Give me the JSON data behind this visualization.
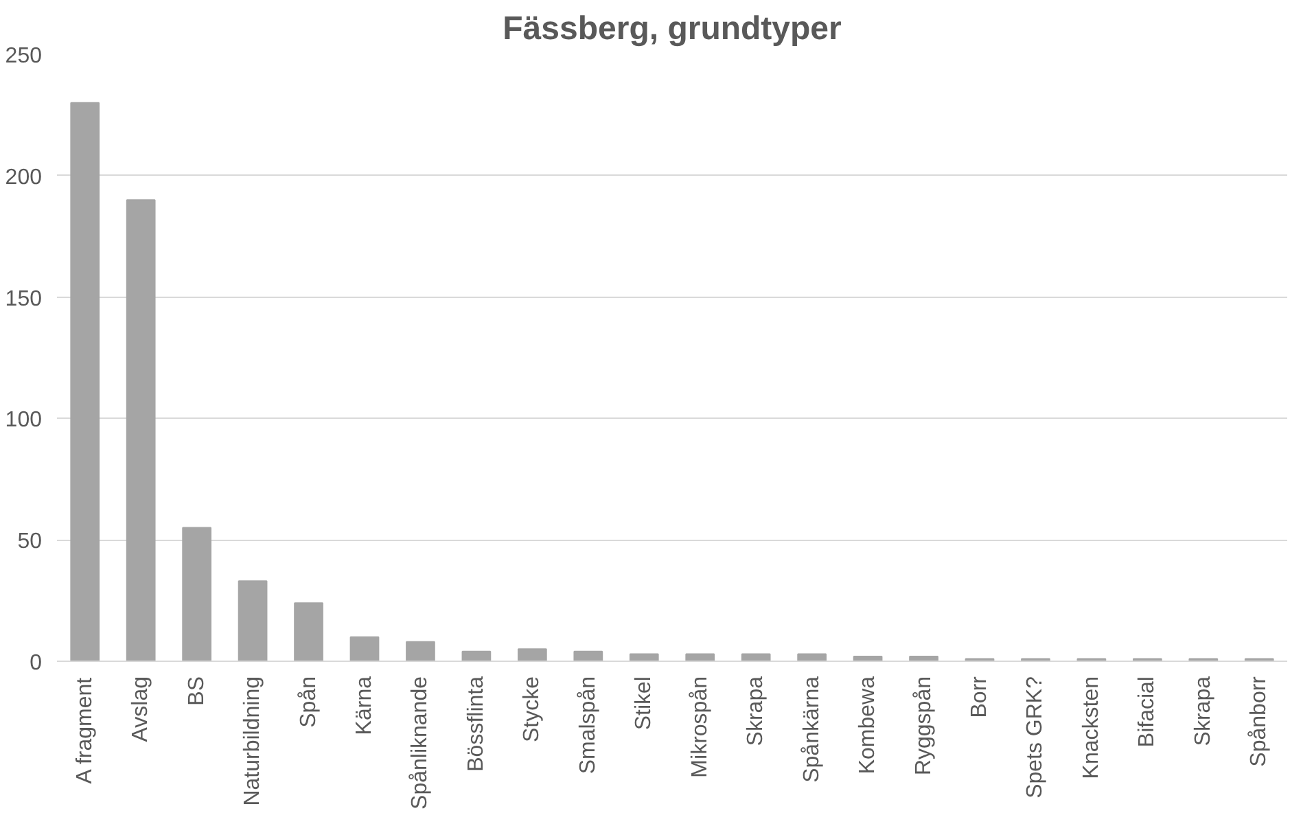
{
  "chart_data": {
    "type": "bar",
    "title": "Fässberg, grundtyper",
    "categories": [
      "A fragment",
      "Avslag",
      "BS",
      "Naturbildning",
      "Spån",
      "Kärna",
      "Spånliknande",
      "Bössflinta",
      "Stycke",
      "Smalspån",
      "Stikel",
      "Mikrospån",
      "Skrapa",
      "Spånkärna",
      "Kombewa",
      "Ryggspån",
      "Borr",
      "Spets GRK?",
      "Knacksten",
      "Bifacial",
      "Skrapa",
      "Spånborr"
    ],
    "values": [
      230,
      190,
      55,
      33,
      24,
      10,
      8,
      4,
      5,
      4,
      3,
      3,
      3,
      3,
      2,
      2,
      1,
      1,
      1,
      1,
      1,
      1
    ],
    "color": "#a5a5a5",
    "ylim": [
      0,
      250
    ],
    "yticks": [
      0,
      50,
      100,
      150,
      200,
      250
    ],
    "grid": "y"
  }
}
